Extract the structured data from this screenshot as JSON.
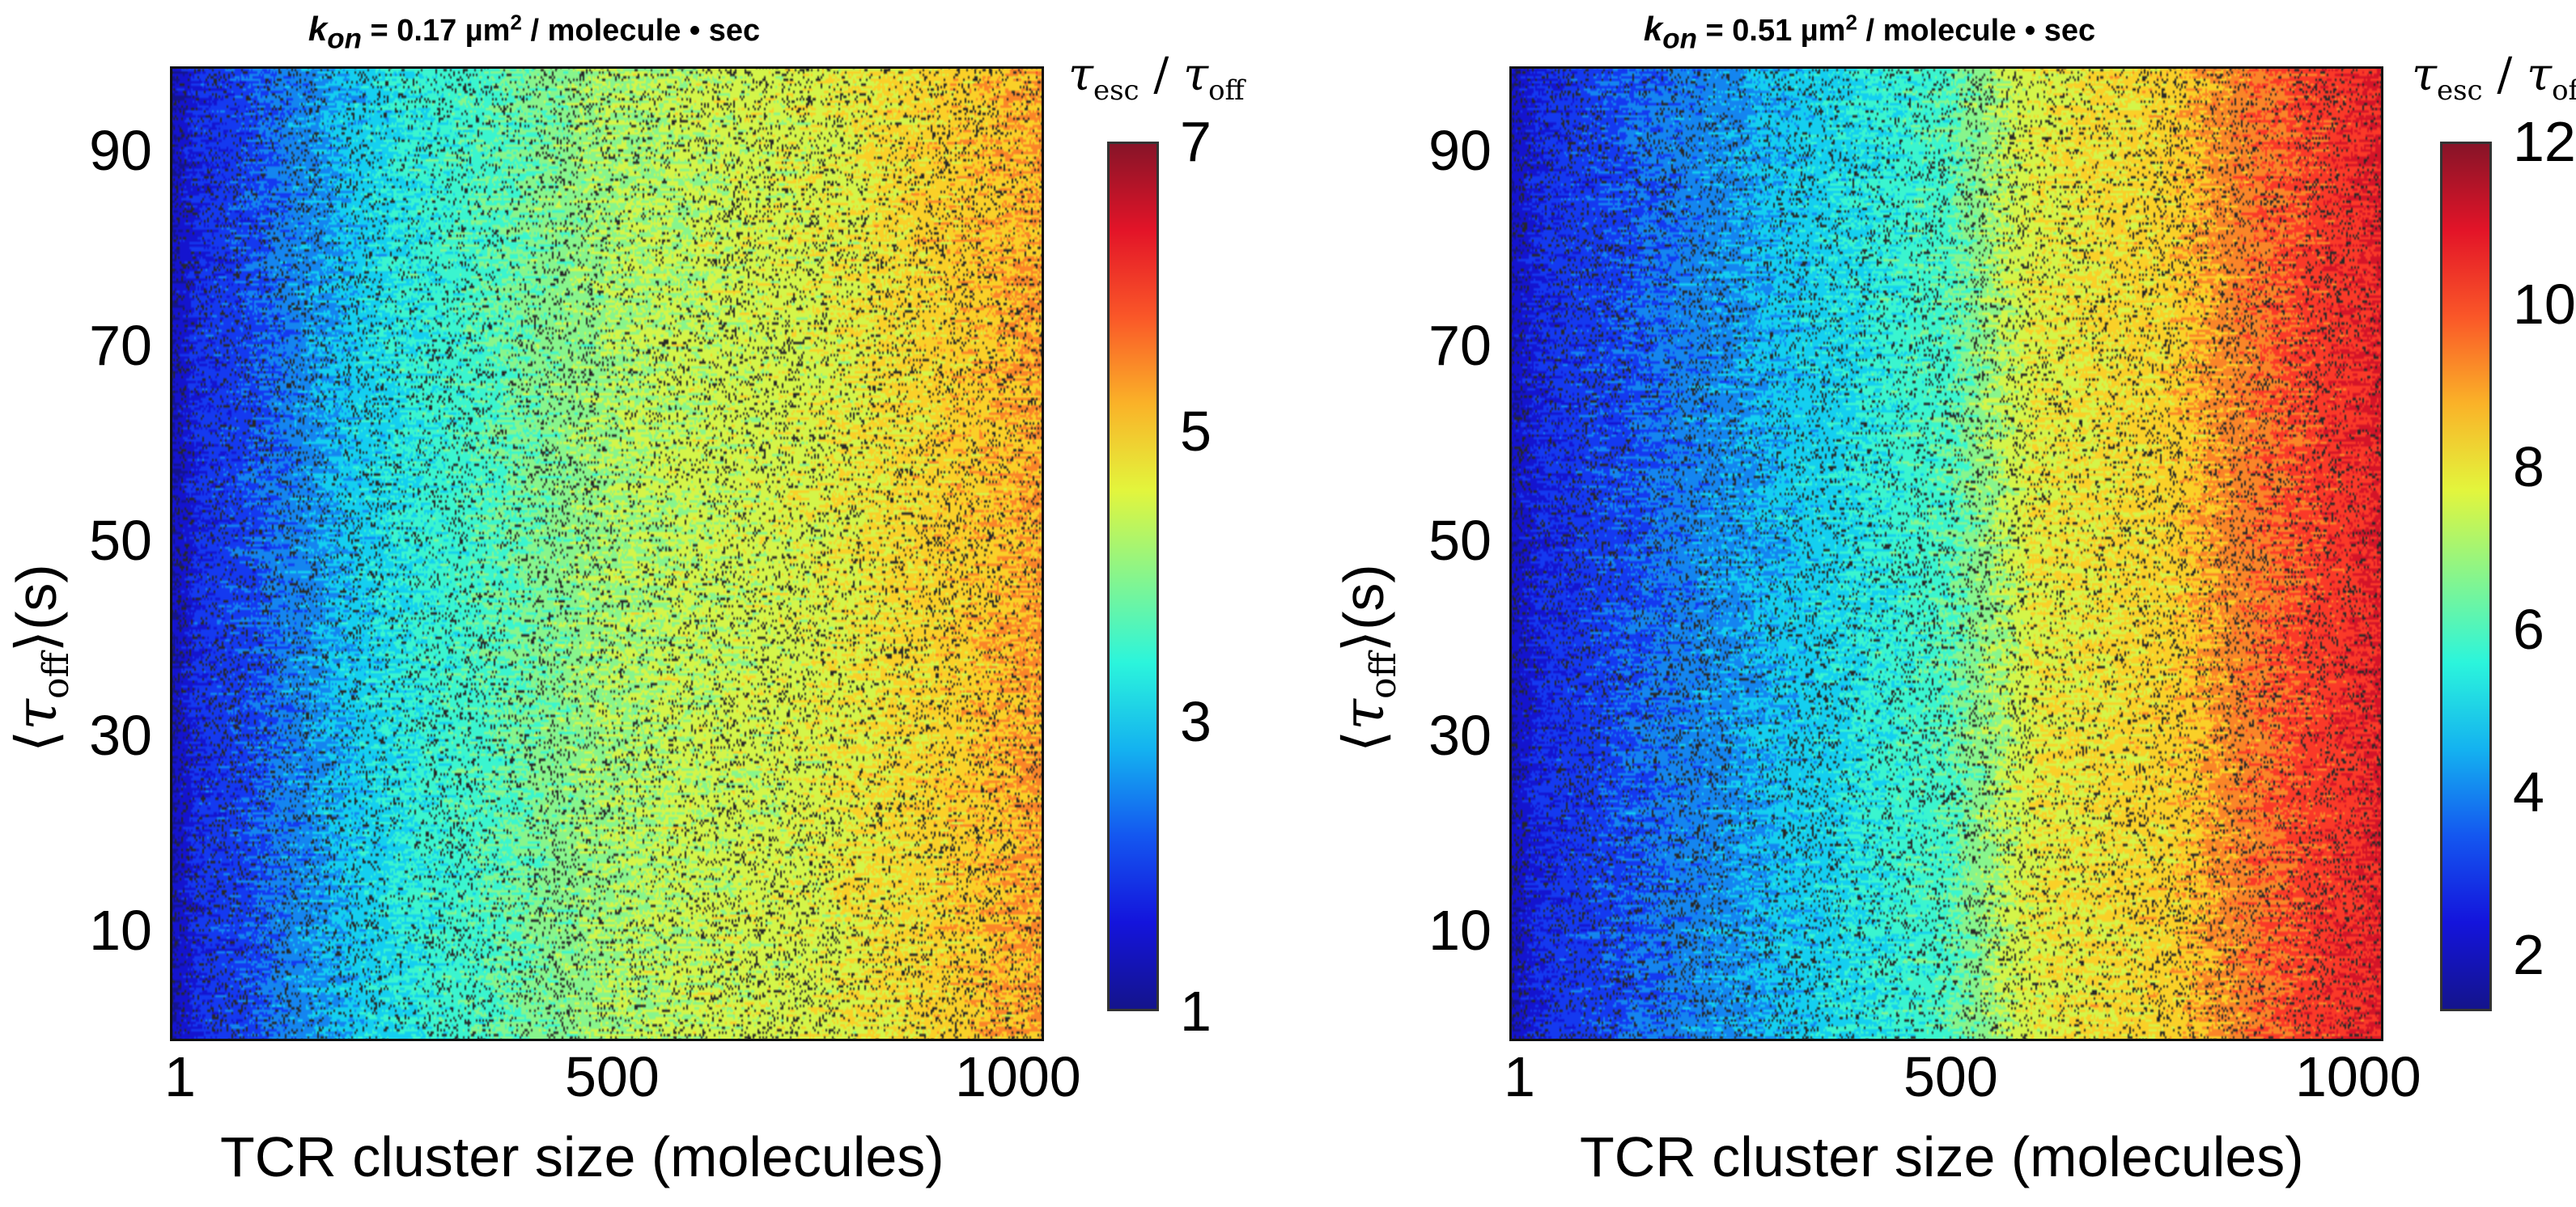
{
  "chart_data": [
    {
      "type": "heatmap",
      "title": {
        "prefix": "k",
        "sub": "on",
        "value": " = 0.17 µm",
        "exp": "2",
        "unit": " / molecule • sec"
      },
      "xlabel": "TCR cluster size (molecules)",
      "ylabel": {
        "open": "⟨",
        "symbol": "τ",
        "sub": "off",
        "close": "⟩",
        "unit": "(s)"
      },
      "x_ticks": [
        "1",
        "500",
        "1000"
      ],
      "x_tick_values": [
        1,
        500,
        1000
      ],
      "xlim": [
        1,
        1000
      ],
      "y_ticks": [
        "10",
        "30",
        "50",
        "70",
        "90"
      ],
      "y_tick_values": [
        10,
        30,
        50,
        70,
        90
      ],
      "ylim": [
        0,
        100
      ],
      "colorbar": {
        "label_main": "τ",
        "label_main_sub": "esc",
        "sep": " / ",
        "label_den": "τ",
        "label_den_sub": "off",
        "ticks": [
          "1",
          "3",
          "5",
          "7"
        ],
        "tick_values": [
          1,
          3,
          5,
          7
        ],
        "range": [
          1,
          7
        ]
      },
      "trend": {
        "x": [
          1,
          30,
          100,
          250,
          500,
          750,
          1000
        ],
        "z": [
          1.2,
          1.8,
          2.2,
          3.2,
          4.2,
          4.6,
          5.3
        ]
      },
      "noise": 0.35,
      "colormap": "jet",
      "grid": false
    },
    {
      "type": "heatmap",
      "title": {
        "prefix": "k",
        "sub": "on",
        "value": " = 0.51 µm",
        "exp": "2",
        "unit": " / molecule • sec"
      },
      "xlabel": "TCR cluster size (molecules)",
      "ylabel": {
        "open": "⟨",
        "symbol": "τ",
        "sub": "off",
        "close": "⟩",
        "unit": "(s)"
      },
      "x_ticks": [
        "1",
        "500",
        "1000"
      ],
      "x_tick_values": [
        1,
        500,
        1000
      ],
      "xlim": [
        1,
        1000
      ],
      "y_ticks": [
        "10",
        "30",
        "50",
        "70",
        "90"
      ],
      "y_tick_values": [
        10,
        30,
        50,
        70,
        90
      ],
      "ylim": [
        0,
        100
      ],
      "colorbar": {
        "label_main": "τ",
        "label_main_sub": "esc",
        "sep": " / ",
        "label_den": "τ",
        "label_den_sub": "off",
        "ticks": [
          "2",
          "4",
          "6",
          "8",
          "10",
          "12"
        ],
        "tick_values": [
          2,
          4,
          6,
          8,
          10,
          12
        ],
        "range": [
          1.3,
          12
        ]
      },
      "trend": {
        "x": [
          1,
          30,
          100,
          250,
          500,
          600,
          750,
          850,
          1000
        ],
        "z": [
          1.8,
          2.6,
          3.2,
          4.2,
          6.0,
          7.8,
          8.3,
          9.5,
          10.8
        ]
      },
      "noise": 0.6,
      "colormap": "jet",
      "grid": false
    }
  ]
}
